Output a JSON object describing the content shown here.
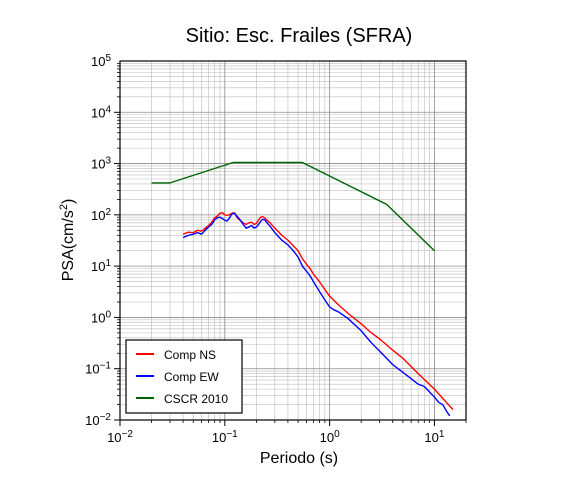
{
  "chart_data": {
    "type": "line",
    "title": "Sitio: Esc. Frailes (SFRA)",
    "xlabel": "Periodo (s)",
    "ylabel_main": "PSA(cm/s",
    "ylabel_sup": "2",
    "ylabel_close": ")",
    "x_scale": "log",
    "y_scale": "log",
    "xlim": [
      0.01,
      20
    ],
    "ylim": [
      0.01,
      100000
    ],
    "grid": true,
    "legend_position": "bottom-left",
    "x_ticks": [
      {
        "value": 0.01,
        "base": "10",
        "exp": "−2"
      },
      {
        "value": 0.1,
        "base": "10",
        "exp": "−1"
      },
      {
        "value": 1,
        "base": "10",
        "exp": "0"
      },
      {
        "value": 10,
        "base": "10",
        "exp": "1"
      }
    ],
    "y_ticks": [
      {
        "value": 0.01,
        "base": "10",
        "exp": "−2"
      },
      {
        "value": 0.1,
        "base": "10",
        "exp": "−1"
      },
      {
        "value": 1,
        "base": "10",
        "exp": "0"
      },
      {
        "value": 10,
        "base": "10",
        "exp": "1"
      },
      {
        "value": 100,
        "base": "10",
        "exp": "2"
      },
      {
        "value": 1000,
        "base": "10",
        "exp": "3"
      },
      {
        "value": 10000,
        "base": "10",
        "exp": "4"
      },
      {
        "value": 100000,
        "base": "10",
        "exp": "5"
      }
    ],
    "series": [
      {
        "name": "Comp NS",
        "color": "#ff0000",
        "points": [
          [
            0.04,
            42
          ],
          [
            0.045,
            46
          ],
          [
            0.05,
            45
          ],
          [
            0.055,
            50
          ],
          [
            0.06,
            48
          ],
          [
            0.065,
            55
          ],
          [
            0.07,
            62
          ],
          [
            0.075,
            72
          ],
          [
            0.08,
            88
          ],
          [
            0.085,
            95
          ],
          [
            0.09,
            108
          ],
          [
            0.095,
            110
          ],
          [
            0.1,
            100
          ],
          [
            0.105,
            98
          ],
          [
            0.11,
            100
          ],
          [
            0.115,
            105
          ],
          [
            0.12,
            110
          ],
          [
            0.125,
            108
          ],
          [
            0.13,
            90
          ],
          [
            0.14,
            78
          ],
          [
            0.15,
            70
          ],
          [
            0.16,
            65
          ],
          [
            0.17,
            70
          ],
          [
            0.18,
            72
          ],
          [
            0.19,
            65
          ],
          [
            0.2,
            68
          ],
          [
            0.21,
            80
          ],
          [
            0.22,
            90
          ],
          [
            0.23,
            92
          ],
          [
            0.24,
            88
          ],
          [
            0.25,
            80
          ],
          [
            0.27,
            70
          ],
          [
            0.3,
            55
          ],
          [
            0.35,
            40
          ],
          [
            0.4,
            32
          ],
          [
            0.45,
            25
          ],
          [
            0.5,
            20
          ],
          [
            0.55,
            14
          ],
          [
            0.6,
            11
          ],
          [
            0.65,
            9
          ],
          [
            0.7,
            7
          ],
          [
            0.8,
            5
          ],
          [
            0.9,
            3.5
          ],
          [
            1.0,
            2.6
          ],
          [
            1.2,
            1.8
          ],
          [
            1.5,
            1.2
          ],
          [
            2.0,
            0.75
          ],
          [
            2.5,
            0.5
          ],
          [
            3.0,
            0.38
          ],
          [
            4.0,
            0.23
          ],
          [
            5.0,
            0.16
          ],
          [
            7.0,
            0.08
          ],
          [
            10.0,
            0.04
          ],
          [
            13.0,
            0.022
          ],
          [
            15.0,
            0.016
          ]
        ]
      },
      {
        "name": "Comp EW",
        "color": "#0000ff",
        "points": [
          [
            0.04,
            36
          ],
          [
            0.045,
            40
          ],
          [
            0.05,
            42
          ],
          [
            0.055,
            45
          ],
          [
            0.06,
            42
          ],
          [
            0.065,
            50
          ],
          [
            0.07,
            58
          ],
          [
            0.075,
            65
          ],
          [
            0.08,
            80
          ],
          [
            0.085,
            88
          ],
          [
            0.09,
            90
          ],
          [
            0.095,
            85
          ],
          [
            0.1,
            78
          ],
          [
            0.105,
            76
          ],
          [
            0.11,
            85
          ],
          [
            0.115,
            100
          ],
          [
            0.12,
            108
          ],
          [
            0.125,
            104
          ],
          [
            0.13,
            95
          ],
          [
            0.14,
            80
          ],
          [
            0.15,
            65
          ],
          [
            0.16,
            55
          ],
          [
            0.17,
            58
          ],
          [
            0.18,
            62
          ],
          [
            0.19,
            55
          ],
          [
            0.2,
            58
          ],
          [
            0.21,
            65
          ],
          [
            0.22,
            75
          ],
          [
            0.23,
            82
          ],
          [
            0.24,
            80
          ],
          [
            0.25,
            72
          ],
          [
            0.27,
            60
          ],
          [
            0.3,
            45
          ],
          [
            0.35,
            32
          ],
          [
            0.4,
            26
          ],
          [
            0.45,
            20
          ],
          [
            0.5,
            15
          ],
          [
            0.55,
            10
          ],
          [
            0.6,
            8
          ],
          [
            0.65,
            6.5
          ],
          [
            0.7,
            5
          ],
          [
            0.8,
            3.2
          ],
          [
            0.9,
            2.2
          ],
          [
            1.0,
            1.6
          ],
          [
            1.1,
            1.4
          ],
          [
            1.2,
            1.3
          ],
          [
            1.5,
            0.95
          ],
          [
            2.0,
            0.55
          ],
          [
            2.5,
            0.32
          ],
          [
            3.0,
            0.22
          ],
          [
            4.0,
            0.12
          ],
          [
            5.0,
            0.085
          ],
          [
            7.0,
            0.05
          ],
          [
            8.0,
            0.045
          ],
          [
            10.0,
            0.028
          ],
          [
            11.0,
            0.022
          ],
          [
            12.0,
            0.02
          ],
          [
            13.0,
            0.015
          ],
          [
            14.0,
            0.012
          ]
        ]
      },
      {
        "name": "CSCR 2010",
        "color": "#006400",
        "points": [
          [
            0.02,
            420
          ],
          [
            0.03,
            420
          ],
          [
            0.12,
            1050
          ],
          [
            0.55,
            1050
          ],
          [
            3.5,
            160
          ],
          [
            10.0,
            20
          ]
        ]
      }
    ]
  }
}
